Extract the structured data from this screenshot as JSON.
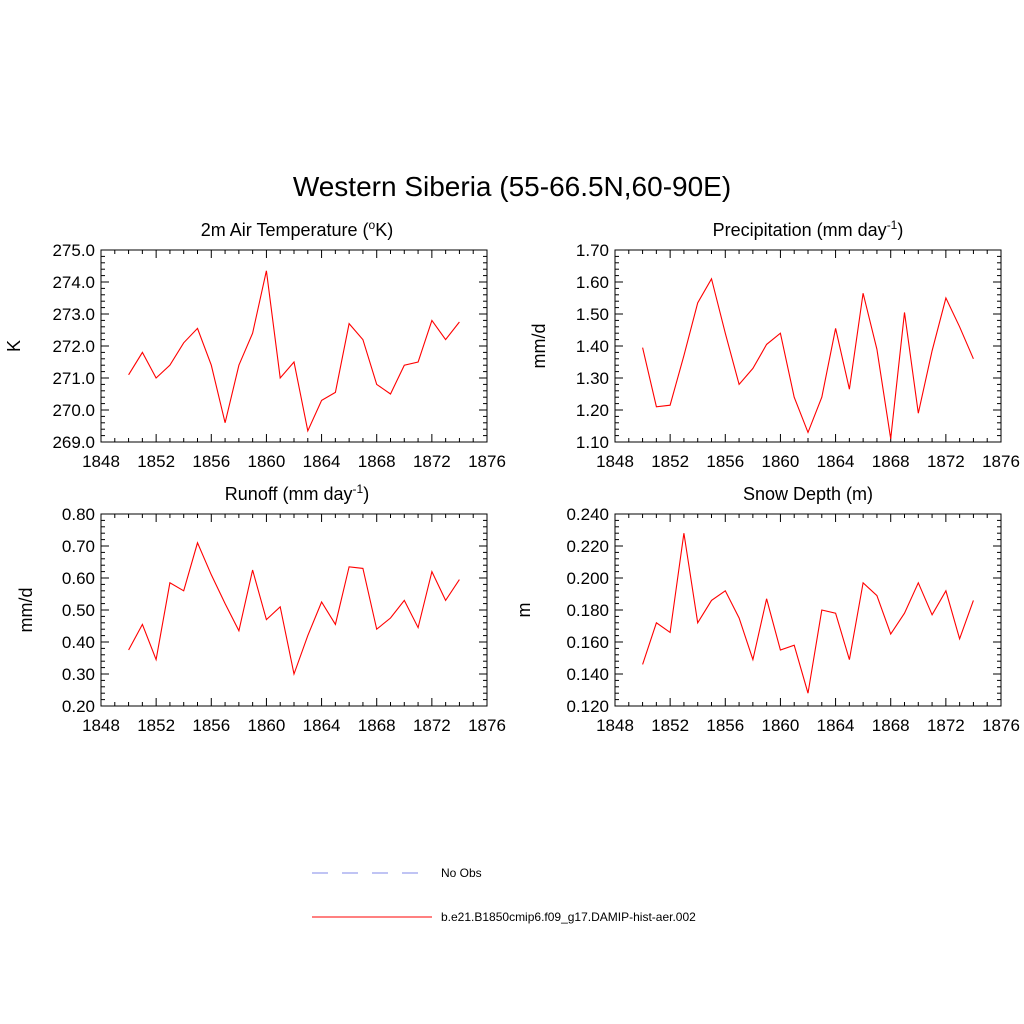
{
  "figure": {
    "title": "Western Siberia (55-66.5N,60-90E)"
  },
  "legend": {
    "entries": [
      {
        "label": "No Obs",
        "color": "#9aa0ee",
        "style": "dashed"
      },
      {
        "label": "b.e21.B1850cmip6.f09_g17.DAMIP-hist-aer.002",
        "color": "#ff0000",
        "style": "solid"
      }
    ]
  },
  "chart_data": [
    {
      "type": "line",
      "title_main": "2m Air Temperature (",
      "title_sup": "o",
      "title_rest": "K)",
      "ylabel": "K",
      "xlabel": "",
      "xlim": [
        1848,
        1876
      ],
      "ylim": [
        269.0,
        275.0
      ],
      "xticks": [
        "1848",
        "1852",
        "1856",
        "1860",
        "1864",
        "1868",
        "1872",
        "1876"
      ],
      "yticks": [
        "269.0",
        "270.0",
        "271.0",
        "272.0",
        "273.0",
        "274.0",
        "275.0"
      ],
      "series": [
        {
          "color": "#ff0000",
          "x": [
            1850,
            1851,
            1852,
            1853,
            1854,
            1855,
            1856,
            1857,
            1858,
            1859,
            1860,
            1861,
            1862,
            1863,
            1864,
            1865,
            1866,
            1867,
            1868,
            1869,
            1870,
            1871,
            1872,
            1873,
            1874
          ],
          "y": [
            271.1,
            271.8,
            271.0,
            271.4,
            272.1,
            272.55,
            271.4,
            269.6,
            271.4,
            272.4,
            274.35,
            271.0,
            271.5,
            269.35,
            270.3,
            270.55,
            272.7,
            272.2,
            270.8,
            270.5,
            271.4,
            271.5,
            272.8,
            272.2,
            272.75
          ]
        }
      ]
    },
    {
      "type": "line",
      "title_main": "Precipitation (mm day",
      "title_sup": "-1",
      "title_rest": ")",
      "ylabel": "mm/d",
      "xlabel": "",
      "xlim": [
        1848,
        1876
      ],
      "ylim": [
        1.1,
        1.7
      ],
      "xticks": [
        "1848",
        "1852",
        "1856",
        "1860",
        "1864",
        "1868",
        "1872",
        "1876"
      ],
      "yticks": [
        "1.10",
        "1.20",
        "1.30",
        "1.40",
        "1.50",
        "1.60",
        "1.70"
      ],
      "series": [
        {
          "color": "#ff0000",
          "x": [
            1850,
            1851,
            1852,
            1853,
            1854,
            1855,
            1856,
            1857,
            1858,
            1859,
            1860,
            1861,
            1862,
            1863,
            1864,
            1865,
            1866,
            1867,
            1868,
            1869,
            1870,
            1871,
            1872,
            1873,
            1874
          ],
          "y": [
            1.395,
            1.21,
            1.215,
            1.37,
            1.535,
            1.61,
            1.44,
            1.28,
            1.33,
            1.405,
            1.44,
            1.24,
            1.13,
            1.24,
            1.455,
            1.265,
            1.565,
            1.39,
            1.11,
            1.505,
            1.19,
            1.385,
            1.55,
            1.46,
            1.36
          ]
        }
      ]
    },
    {
      "type": "line",
      "title_main": "Runoff (mm day",
      "title_sup": "-1",
      "title_rest": ")",
      "ylabel": "mm/d",
      "xlabel": "",
      "xlim": [
        1848,
        1876
      ],
      "ylim": [
        0.2,
        0.8
      ],
      "xticks": [
        "1848",
        "1852",
        "1856",
        "1860",
        "1864",
        "1868",
        "1872",
        "1876"
      ],
      "yticks": [
        "0.20",
        "0.30",
        "0.40",
        "0.50",
        "0.60",
        "0.70",
        "0.80"
      ],
      "series": [
        {
          "color": "#ff0000",
          "x": [
            1850,
            1851,
            1852,
            1853,
            1854,
            1855,
            1856,
            1857,
            1858,
            1859,
            1860,
            1861,
            1862,
            1863,
            1864,
            1865,
            1866,
            1867,
            1868,
            1869,
            1870,
            1871,
            1872,
            1873,
            1874
          ],
          "y": [
            0.375,
            0.455,
            0.345,
            0.585,
            0.56,
            0.71,
            0.61,
            0.52,
            0.435,
            0.625,
            0.47,
            0.51,
            0.3,
            0.42,
            0.525,
            0.455,
            0.635,
            0.63,
            0.44,
            0.475,
            0.53,
            0.445,
            0.62,
            0.53,
            0.595
          ]
        }
      ]
    },
    {
      "type": "line",
      "title_main": "Snow Depth (m)",
      "title_sup": "",
      "title_rest": "",
      "ylabel": "m",
      "xlabel": "",
      "xlim": [
        1848,
        1876
      ],
      "ylim": [
        0.12,
        0.24
      ],
      "xticks": [
        "1848",
        "1852",
        "1856",
        "1860",
        "1864",
        "1868",
        "1872",
        "1876"
      ],
      "yticks": [
        "0.120",
        "0.140",
        "0.160",
        "0.180",
        "0.200",
        "0.220",
        "0.240"
      ],
      "series": [
        {
          "color": "#ff0000",
          "x": [
            1850,
            1851,
            1852,
            1853,
            1854,
            1855,
            1856,
            1857,
            1858,
            1859,
            1860,
            1861,
            1862,
            1863,
            1864,
            1865,
            1866,
            1867,
            1868,
            1869,
            1870,
            1871,
            1872,
            1873,
            1874
          ],
          "y": [
            0.146,
            0.172,
            0.166,
            0.228,
            0.172,
            0.186,
            0.192,
            0.175,
            0.149,
            0.187,
            0.155,
            0.158,
            0.128,
            0.18,
            0.178,
            0.149,
            0.197,
            0.189,
            0.165,
            0.178,
            0.197,
            0.177,
            0.192,
            0.162,
            0.186
          ]
        }
      ]
    }
  ]
}
